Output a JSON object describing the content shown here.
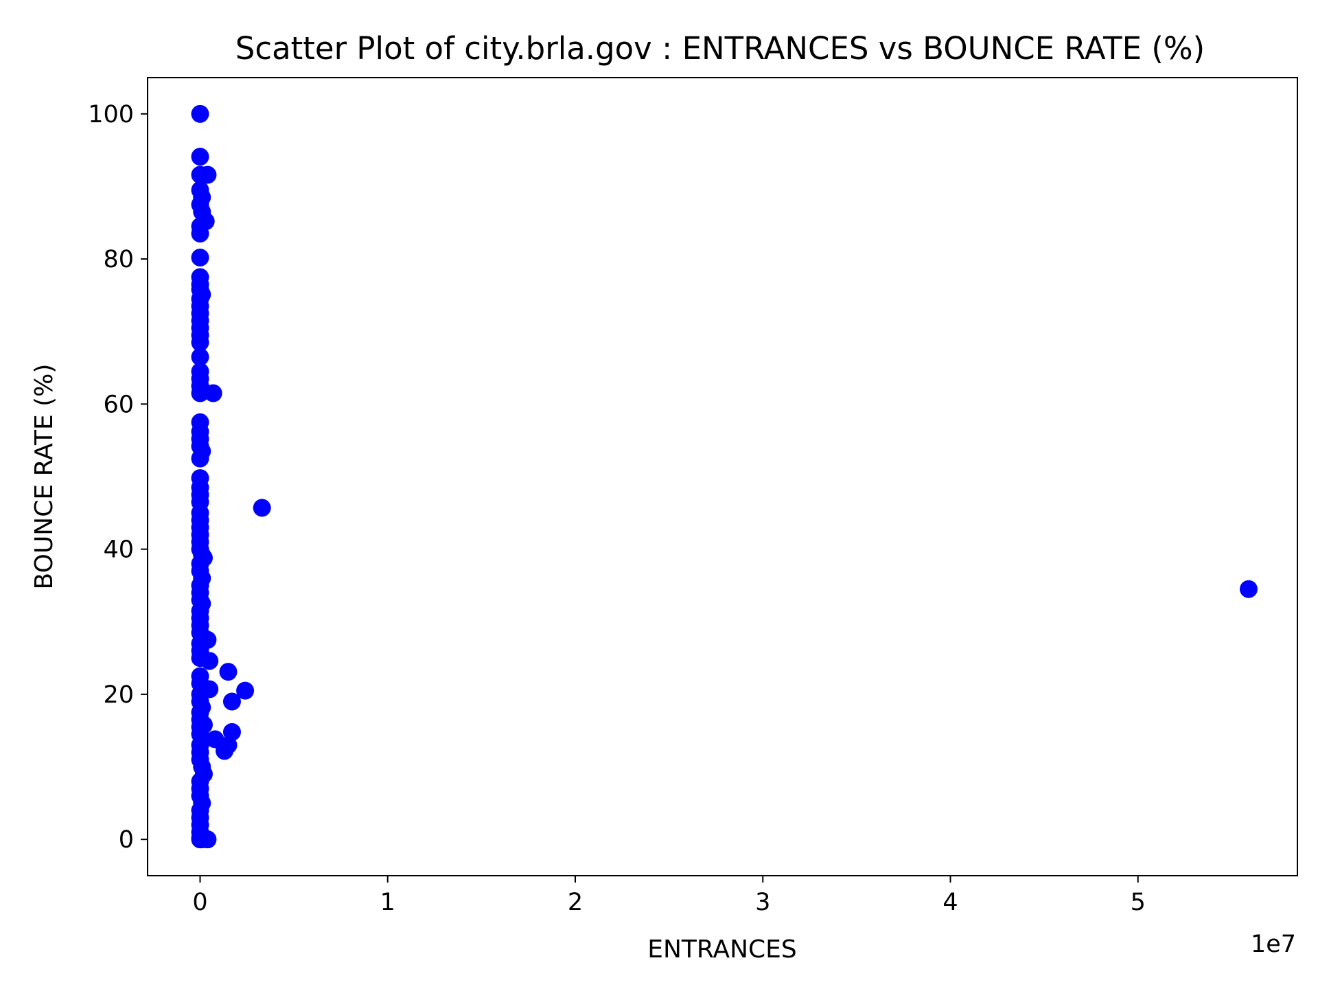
{
  "chart_data": {
    "type": "scatter",
    "title": "Scatter Plot of city.brla.gov : ENTRANCES vs BOUNCE RATE (%)",
    "xlabel": "ENTRANCES",
    "ylabel": "BOUNCE RATE (%)",
    "x_offset_label": "1e7",
    "x_ticks": [
      0,
      1,
      2,
      3,
      4,
      5
    ],
    "x_tick_multiplier": 10000000,
    "y_ticks": [
      0,
      20,
      40,
      60,
      80,
      100
    ],
    "xlim": [
      -2800000,
      58500000
    ],
    "ylim": [
      -5,
      105
    ],
    "grid": false,
    "legend": "none",
    "marker_color": "#0000ff",
    "points": [
      {
        "x": 0,
        "y": 100
      },
      {
        "x": 0,
        "y": 94.1
      },
      {
        "x": 0,
        "y": 91.6
      },
      {
        "x": 400000,
        "y": 91.6
      },
      {
        "x": 0,
        "y": 89.5
      },
      {
        "x": 100000,
        "y": 88.5
      },
      {
        "x": 0,
        "y": 87.5
      },
      {
        "x": 100000,
        "y": 86.5
      },
      {
        "x": 300000,
        "y": 85.2
      },
      {
        "x": 0,
        "y": 84.5
      },
      {
        "x": 0,
        "y": 83.5
      },
      {
        "x": 0,
        "y": 80.2
      },
      {
        "x": 0,
        "y": 77.5
      },
      {
        "x": 0,
        "y": 76.5
      },
      {
        "x": 0,
        "y": 75.8
      },
      {
        "x": 100000,
        "y": 75.1
      },
      {
        "x": 0,
        "y": 74.5
      },
      {
        "x": 0,
        "y": 73.5
      },
      {
        "x": 0,
        "y": 72.5
      },
      {
        "x": 0,
        "y": 71.5
      },
      {
        "x": 0,
        "y": 70.5
      },
      {
        "x": 0,
        "y": 69.5
      },
      {
        "x": 0,
        "y": 68.5
      },
      {
        "x": 0,
        "y": 66.5
      },
      {
        "x": 0,
        "y": 64.5
      },
      {
        "x": 0,
        "y": 63.5
      },
      {
        "x": 0,
        "y": 62.5
      },
      {
        "x": 0,
        "y": 61.5
      },
      {
        "x": 700000,
        "y": 61.5
      },
      {
        "x": 0,
        "y": 57.5
      },
      {
        "x": 0,
        "y": 56.2
      },
      {
        "x": 0,
        "y": 55.2
      },
      {
        "x": 0,
        "y": 54.2
      },
      {
        "x": 100000,
        "y": 53.5
      },
      {
        "x": 0,
        "y": 52.5
      },
      {
        "x": 0,
        "y": 49.8
      },
      {
        "x": 0,
        "y": 48.5
      },
      {
        "x": 0,
        "y": 47.5
      },
      {
        "x": 0,
        "y": 46.5
      },
      {
        "x": 3300000,
        "y": 45.7
      },
      {
        "x": 0,
        "y": 45.0
      },
      {
        "x": 0,
        "y": 44.0
      },
      {
        "x": 0,
        "y": 43.0
      },
      {
        "x": 0,
        "y": 42.0
      },
      {
        "x": 0,
        "y": 41.0
      },
      {
        "x": 0,
        "y": 40.0
      },
      {
        "x": 100000,
        "y": 39.2
      },
      {
        "x": 200000,
        "y": 38.8
      },
      {
        "x": 0,
        "y": 38.0
      },
      {
        "x": 0,
        "y": 37.0
      },
      {
        "x": 100000,
        "y": 36.0
      },
      {
        "x": 0,
        "y": 35.0
      },
      {
        "x": 0,
        "y": 34.0
      },
      {
        "x": 0,
        "y": 33.0
      },
      {
        "x": 100000,
        "y": 32.5
      },
      {
        "x": 0,
        "y": 31.5
      },
      {
        "x": 0,
        "y": 30.5
      },
      {
        "x": 0,
        "y": 29.5
      },
      {
        "x": 0,
        "y": 28.5
      },
      {
        "x": 400000,
        "y": 27.5
      },
      {
        "x": 0,
        "y": 27.0
      },
      {
        "x": 0,
        "y": 26.0
      },
      {
        "x": 0,
        "y": 25.0
      },
      {
        "x": 500000,
        "y": 24.6
      },
      {
        "x": 1500000,
        "y": 23.1
      },
      {
        "x": 0,
        "y": 22.5
      },
      {
        "x": 0,
        "y": 21.5
      },
      {
        "x": 500000,
        "y": 20.7
      },
      {
        "x": 2400000,
        "y": 20.5
      },
      {
        "x": 0,
        "y": 20.0
      },
      {
        "x": 0,
        "y": 19.0
      },
      {
        "x": 1700000,
        "y": 19.0
      },
      {
        "x": 100000,
        "y": 18.2
      },
      {
        "x": 0,
        "y": 17.5
      },
      {
        "x": 0,
        "y": 16.5
      },
      {
        "x": 200000,
        "y": 15.8
      },
      {
        "x": 0,
        "y": 15.5
      },
      {
        "x": 1700000,
        "y": 14.8
      },
      {
        "x": 0,
        "y": 14.5
      },
      {
        "x": 800000,
        "y": 13.8
      },
      {
        "x": 1500000,
        "y": 13.0
      },
      {
        "x": 0,
        "y": 13.0
      },
      {
        "x": 1300000,
        "y": 12.2
      },
      {
        "x": 0,
        "y": 12.0
      },
      {
        "x": 0,
        "y": 11.0
      },
      {
        "x": 100000,
        "y": 10.0
      },
      {
        "x": 200000,
        "y": 9.0
      },
      {
        "x": 0,
        "y": 8.0
      },
      {
        "x": 0,
        "y": 7.0
      },
      {
        "x": 0,
        "y": 6.0
      },
      {
        "x": 100000,
        "y": 5.0
      },
      {
        "x": 0,
        "y": 4.0
      },
      {
        "x": 0,
        "y": 3.0
      },
      {
        "x": 0,
        "y": 2.0
      },
      {
        "x": 0,
        "y": 1.0
      },
      {
        "x": 0,
        "y": 0.2
      },
      {
        "x": 0,
        "y": 0
      },
      {
        "x": 100000,
        "y": 0
      },
      {
        "x": 400000,
        "y": 0
      },
      {
        "x": 55900000,
        "y": 34.5
      }
    ]
  }
}
